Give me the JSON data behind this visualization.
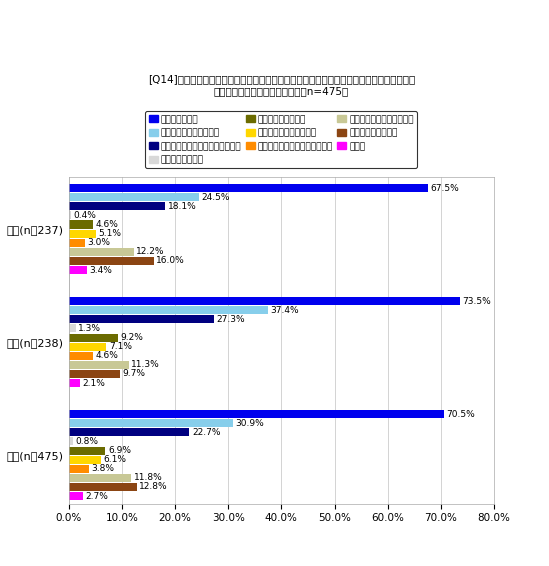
{
  "title_line1": "[Q14]あなたがオンラインショッピングで購入目的にない商品に対して思わず興味を持つポ",
  "title_line2": "イントは何ですか？（複数回答、n=475）",
  "groups": [
    "男性(n：237)",
    "女性(n：238)",
    "全体(n：475)"
  ],
  "group_labels": [
    "男性(n：237)",
    "女性(n：238)",
    "全体(n：475)"
  ],
  "categories": [
    "お買い得だから",
    "画像に魅力を感じたから",
    "インターネット限定の販売だから",
    "信頼性があるから",
    "知名度があったから",
    "在庫数が少なかったから",
    "キャラクターが気になったから",
    "有名人が使用していたから",
    "特に興味を持たない",
    "その他"
  ],
  "colors": [
    "#0000EE",
    "#87CEEB",
    "#000080",
    "#D8D8D8",
    "#6B6B00",
    "#FFD700",
    "#FF8C00",
    "#C8C896",
    "#8B4513",
    "#FF00FF"
  ],
  "data": {
    "男性(n：237)": [
      67.5,
      24.5,
      18.1,
      0.4,
      4.6,
      5.1,
      3.0,
      12.2,
      16.0,
      3.4
    ],
    "女性(n：238)": [
      73.5,
      37.4,
      27.3,
      1.3,
      9.2,
      7.1,
      4.6,
      11.3,
      9.7,
      2.1
    ],
    "全体(n：475)": [
      70.5,
      30.9,
      22.7,
      0.8,
      6.9,
      6.1,
      3.8,
      11.8,
      12.8,
      2.7
    ]
  },
  "xlim": [
    0,
    80
  ],
  "xticks": [
    0,
    10,
    20,
    30,
    40,
    50,
    60,
    70,
    80
  ],
  "xtick_labels": [
    "0.0%",
    "10.0%",
    "20.0%",
    "30.0%",
    "40.0%",
    "50.0%",
    "60.0%",
    "70.0%",
    "80.0%"
  ]
}
